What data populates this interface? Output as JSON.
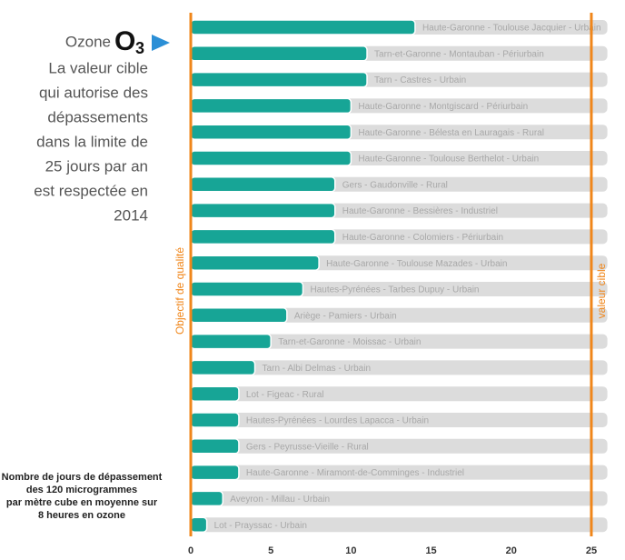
{
  "chart_data": {
    "type": "bar",
    "orientation": "horizontal",
    "title": "Ozone",
    "title_symbol": "O",
    "title_symbol_subscript": "3",
    "subtitle_lines": [
      "La valeur cible",
      "qui autorise des",
      "dépassements",
      "dans la limite de",
      "25 jours par an",
      "est respectée en",
      "2014"
    ],
    "note_lines": [
      "Nombre de jours de dépassement",
      "des 120 microgrammes",
      "par mètre cube en moyenne sur",
      "8 heures en ozone"
    ],
    "categories": [
      "Haute-Garonne - Toulouse Jacquier - Urbain",
      "Tarn-et-Garonne - Montauban - Périurbain",
      "Tarn - Castres - Urbain",
      "Haute-Garonne - Montgiscard - Périurbain",
      "Haute-Garonne - Bélesta en Lauragais - Rural",
      "Haute-Garonne - Toulouse Berthelot - Urbain",
      "Gers - Gaudonville - Rural",
      "Haute-Garonne - Bessières - Industriel",
      "Haute-Garonne - Colomiers - Périurbain",
      "Haute-Garonne - Toulouse Mazades - Urbain",
      "Hautes-Pyrénées - Tarbes Dupuy - Urbain",
      "Ariège - Pamiers - Urbain",
      "Tarn-et-Garonne - Moissac - Urbain",
      "Tarn - Albi Delmas - Urbain",
      "Lot - Figeac - Rural",
      "Hautes-Pyrénées - Lourdes Lapacca - Urbain",
      "Gers - Peyrusse-Vieille - Rural",
      "Haute-Garonne - Miramont-de-Comminges - Industriel",
      "Aveyron - Millau - Urbain",
      "Lot - Prayssac - Urbain"
    ],
    "values": [
      14,
      11,
      11,
      10,
      10,
      10,
      9,
      9,
      9,
      8,
      7,
      6,
      5,
      4,
      3,
      3,
      3,
      3,
      2,
      1
    ],
    "color": "#17a596",
    "track_color": "#dcdcdc",
    "xlim": [
      0,
      26
    ],
    "xticks": [
      0,
      5,
      10,
      15,
      20,
      25
    ],
    "reference_lines": [
      {
        "value": 0,
        "label": "Objectif de qualité"
      },
      {
        "value": 25,
        "label": "valeur cible"
      }
    ],
    "reference_color": "#f0861a"
  }
}
